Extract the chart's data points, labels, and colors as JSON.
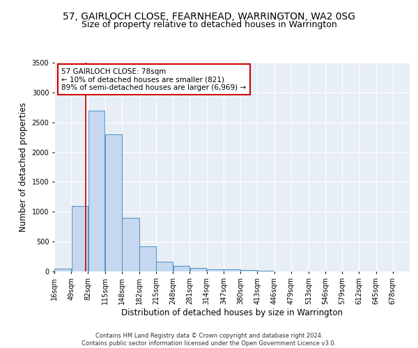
{
  "title": "57, GAIRLOCH CLOSE, FEARNHEAD, WARRINGTON, WA2 0SG",
  "subtitle": "Size of property relative to detached houses in Warrington",
  "xlabel": "Distribution of detached houses by size in Warrington",
  "ylabel": "Number of detached properties",
  "footer_line1": "Contains HM Land Registry data © Crown copyright and database right 2024.",
  "footer_line2": "Contains public sector information licensed under the Open Government Licence v3.0.",
  "annotation_title": "57 GAIRLOCH CLOSE: 78sqm",
  "annotation_line1": "← 10% of detached houses are smaller (821)",
  "annotation_line2": "89% of semi-detached houses are larger (6,969) →",
  "bar_left_edges": [
    16,
    49,
    82,
    115,
    148,
    182,
    215,
    248,
    281,
    314,
    347,
    380,
    413,
    446,
    479,
    513,
    546,
    579,
    612,
    645
  ],
  "bar_widths": [
    33,
    33,
    33,
    33,
    34,
    33,
    33,
    33,
    33,
    33,
    33,
    33,
    33,
    33,
    33,
    34,
    33,
    33,
    33,
    33
  ],
  "bar_heights": [
    50,
    1100,
    2700,
    2300,
    900,
    420,
    160,
    90,
    55,
    40,
    30,
    20,
    10,
    5,
    3,
    2,
    1,
    1,
    0,
    0
  ],
  "bar_color": "#c5d8f0",
  "bar_edge_color": "#4a90c4",
  "property_size": 78,
  "red_line_color": "#cc0000",
  "ylim": [
    0,
    3500
  ],
  "yticks": [
    0,
    500,
    1000,
    1500,
    2000,
    2500,
    3000,
    3500
  ],
  "xtick_labels": [
    "16sqm",
    "49sqm",
    "82sqm",
    "115sqm",
    "148sqm",
    "182sqm",
    "215sqm",
    "248sqm",
    "281sqm",
    "314sqm",
    "347sqm",
    "380sqm",
    "413sqm",
    "446sqm",
    "479sqm",
    "513sqm",
    "546sqm",
    "579sqm",
    "612sqm",
    "645sqm",
    "678sqm"
  ],
  "bg_color": "#ffffff",
  "plot_bg_color": "#e8eef5",
  "annotation_box_color": "#ffffff",
  "annotation_box_edge_color": "#cc0000",
  "title_fontsize": 10,
  "subtitle_fontsize": 9,
  "axis_label_fontsize": 8.5,
  "tick_fontsize": 7,
  "annotation_fontsize": 7.5,
  "footer_fontsize": 6
}
